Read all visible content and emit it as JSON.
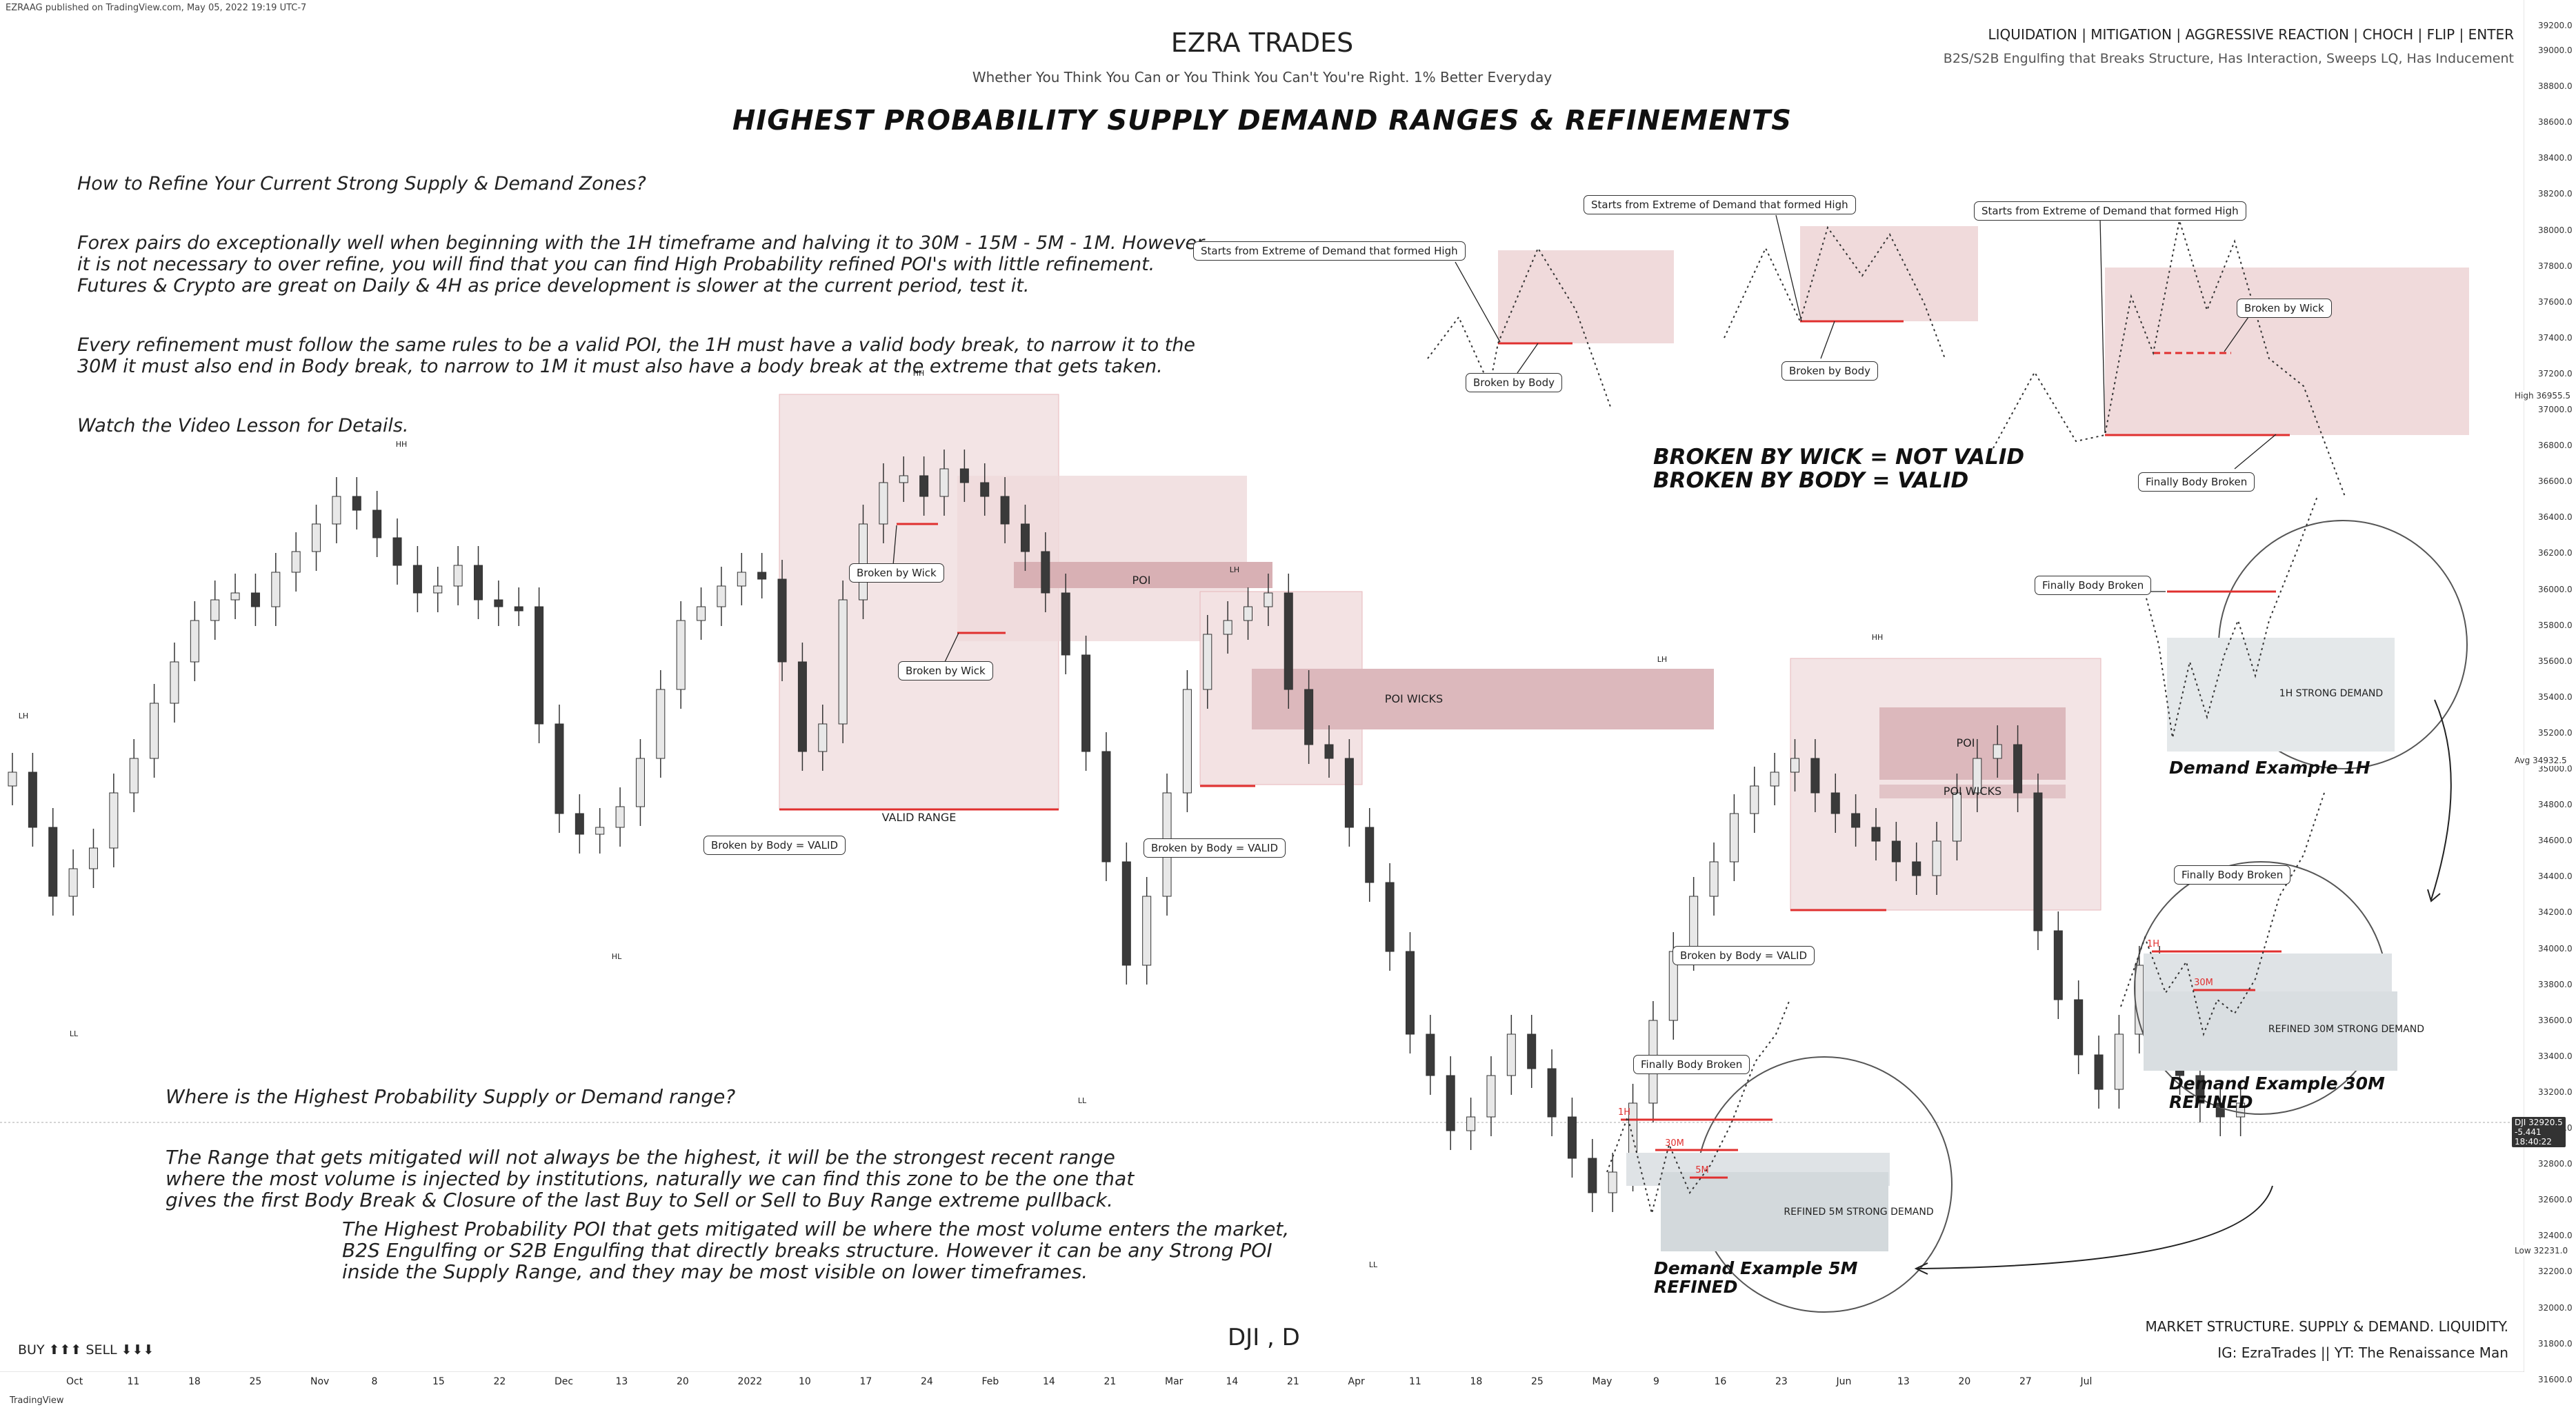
{
  "publisher_line": "EZRAAG published on TradingView.com, May 05, 2022 19:19 UTC-7",
  "brand": "EZRA TRADES",
  "tagline": "Whether You Think You Can or You Think You Can't You're Right. 1% Better Everyday",
  "headline": "HIGHEST PROBABILITY SUPPLY DEMAND RANGES & REFINEMENTS",
  "top_right": {
    "keywords": "LIQUIDATION | MITIGATION | AGGRESSIVE REACTION | CHOCH | FLIP | ENTER",
    "criteria": "B2S/S2B Engulfing that Breaks Structure, Has Interaction, Sweeps LQ, Has Inducement"
  },
  "intro": {
    "question": "How to Refine Your Current Strong Supply & Demand Zones?",
    "p1": "Forex pairs do exceptionally well when beginning with the 1H timeframe and halving it to 30M - 15M - 5M - 1M. However\nit is not necessary to over refine, you will find that you can find High Probability refined POI's with little refinement.\nFutures & Crypto are great on Daily & 4H as price development is slower at the current period, test it.",
    "p2": "Every refinement must follow the same rules to be a valid POI, the 1H must have a valid body break, to narrow it to the\n30M it must also end in Body break, to narrow to 1M it must also have a body break at the extreme that gets taken.",
    "p3": "Watch the Video Lesson for Details."
  },
  "middle_text": {
    "question": "Where is the Highest Probability Supply or Demand range?",
    "body": "The Range that gets mitigated will not always be the highest, it will be the strongest recent range\nwhere the most volume is injected by institutions, naturally we can find this zone to be the one that\ngives the first Body Break & Closure of the last Buy to Sell or Sell to Buy Range extreme pullback."
  },
  "lower_text": "The Highest Probability POI that gets mitigated will be where the most volume enters the market,\nB2S Engulfing or S2B Engulfing that directly breaks structure. However it can be any Strong POI\ninside the Supply Range, and they may be most visible on lower timeframes.",
  "rule": {
    "line1": "BROKEN BY WICK = NOT VALID",
    "line2": "BROKEN BY BODY = VALID"
  },
  "annotations": {
    "starts_extreme": "Starts from Extreme of Demand that formed High",
    "broken_by_body": "Broken by Body",
    "broken_by_wick": "Broken by Wick",
    "finally_body_broken": "Finally Body Broken",
    "broken_by_body_valid": "Broken by Body = VALID",
    "valid_range": "VALID RANGE",
    "poi": "POI",
    "poi_wicks": "POI WICKS"
  },
  "examples": {
    "ex1h": {
      "title": "Demand Example 1H",
      "zone": "1H STRONG DEMAND"
    },
    "ex30m": {
      "title_l1": "Demand Example 30M",
      "title_l2": "REFINED",
      "zone": "REFINED 30M STRONG DEMAND",
      "tf_a": "1H",
      "tf_b": "30M"
    },
    "ex5m": {
      "title_l1": "Demand Example 5M",
      "title_l2": "REFINED",
      "zone": "REFINED 5M STRONG DEMAND",
      "tf_a": "1H",
      "tf_b": "30M",
      "tf_c": "5M"
    }
  },
  "swing_markers": {
    "hh": "HH",
    "lh": "LH",
    "ll": "LL",
    "hl": "HL"
  },
  "ticker": "DJI , D",
  "buy_sell": "BUY ⬆⬆⬆ SELL ⬇⬇⬇",
  "bottom_right": {
    "l1": "MARKET STRUCTURE. SUPPLY & DEMAND. LIQUIDITY.",
    "l2": "IG: EzraTrades || YT: The Renaissance Man"
  },
  "tradingview": "TradingView",
  "x_axis": [
    "Oct",
    "11",
    "18",
    "25",
    "Nov",
    "8",
    "15",
    "22",
    "Dec",
    "13",
    "20",
    "2022",
    "10",
    "17",
    "24",
    "Feb",
    "14",
    "21",
    "Mar",
    "14",
    "21",
    "Apr",
    "11",
    "18",
    "25",
    "May",
    "9",
    "16",
    "23",
    "Jun",
    "13",
    "20",
    "27",
    "Jul"
  ],
  "y_axis": [
    "39000.0",
    "38800.0",
    "38600.0",
    "38400.0",
    "38200.0",
    "38000.0",
    "37800.0",
    "37600.0",
    "37400.0",
    "37200.0",
    "37000.0",
    "36800.0",
    "36600.0",
    "36400.0",
    "36200.0",
    "36000.0",
    "35800.0",
    "35600.0",
    "35400.0",
    "35200.0",
    "35000.0",
    "34800.0",
    "34600.0",
    "34400.0",
    "34200.0",
    "34000.0",
    "33800.0",
    "33600.0",
    "33400.0",
    "33200.0",
    "33000.0",
    "32800.0",
    "32600.0",
    "32400.0",
    "32200.0",
    "32000.0",
    "31800.0",
    "31600.0"
  ],
  "y_top_partial": "39200.0",
  "price_badges": {
    "high_label": "High",
    "high_value": "36955.5",
    "avg_label": "Avg",
    "avg_value": "34932.5",
    "dji_label": "DJI",
    "dji_value": "32920.5",
    "dji_change": "-5.441",
    "dji_time": "18:40:22",
    "low_label": "Low",
    "low_value": "32231.0"
  },
  "colors": {
    "zone_pink": "#e9cdd0",
    "zone_dark": "#c9999f",
    "zone_gray": "#dfe3e6",
    "red_line": "#e0302f",
    "candle_up": "#e8e8e8",
    "candle_down": "#3a3a3a"
  }
}
